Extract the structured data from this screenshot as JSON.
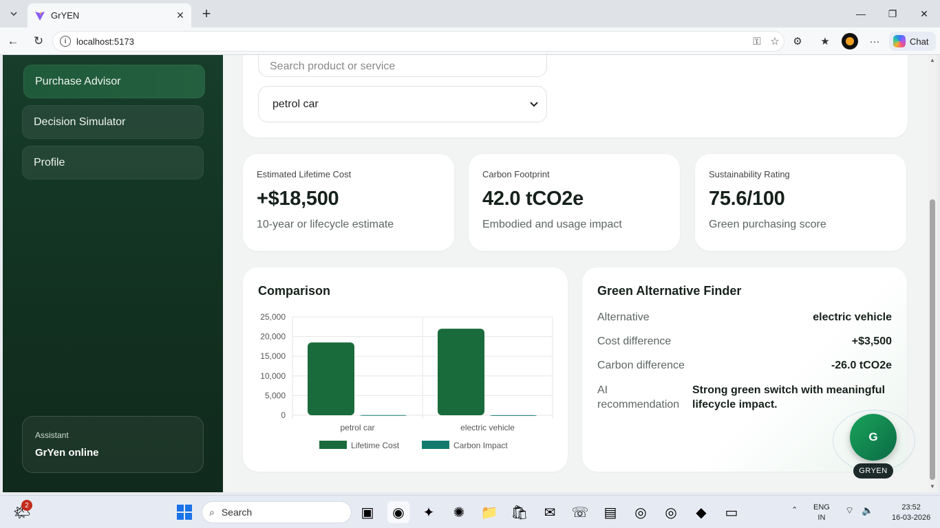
{
  "browser": {
    "tab_title": "GrYEN",
    "url": "localhost:5173",
    "chat_label": "Chat"
  },
  "sidebar": {
    "items": [
      {
        "label": "Purchase Advisor",
        "active": true
      },
      {
        "label": "Decision Simulator",
        "active": false
      },
      {
        "label": "Profile",
        "active": false
      }
    ],
    "assistant_label": "Assistant",
    "assistant_status": "GrYen online"
  },
  "search": {
    "placeholder": "Search product or service",
    "selected_option": "petrol car"
  },
  "stats": [
    {
      "label": "Estimated Lifetime Cost",
      "value": "+$18,500",
      "sub": "10-year or lifecycle estimate"
    },
    {
      "label": "Carbon Footprint",
      "value": "42.0 tCO2e",
      "sub": "Embodied and usage impact"
    },
    {
      "label": "Sustainability Rating",
      "value": "75.6/100",
      "sub": "Green purchasing score"
    }
  ],
  "comparison": {
    "title": "Comparison"
  },
  "chart_data": {
    "type": "bar",
    "title": "Comparison",
    "categories": [
      "petrol car",
      "electric vehicle"
    ],
    "series": [
      {
        "name": "Lifetime Cost",
        "values": [
          18500,
          22000
        ],
        "color": "#1a6b3c"
      },
      {
        "name": "Carbon Impact",
        "values": [
          42,
          16
        ],
        "color": "#137a6e"
      }
    ],
    "ylim": [
      0,
      25000
    ],
    "yticks": [
      "25,000",
      "20,000",
      "15,000",
      "10,000",
      "5,000",
      "0"
    ],
    "ytick_values": [
      25000,
      20000,
      15000,
      10000,
      5000,
      0
    ],
    "legend": "bottom",
    "grid": true
  },
  "finder": {
    "title": "Green Alternative Finder",
    "rows": [
      {
        "label": "Alternative",
        "value": "electric vehicle"
      },
      {
        "label": "Cost difference",
        "value": "+$3,500"
      },
      {
        "label": "Carbon difference",
        "value": "-26.0 tCO2e"
      }
    ],
    "ai_label": "AI recommendation",
    "ai_value": "Strong green switch with meaningful lifecycle impact."
  },
  "assistant_fab": {
    "letter": "G",
    "tag": "GRYEN"
  },
  "taskbar": {
    "search_label": "Search",
    "notification_count": "2",
    "lang_1": "ENG",
    "lang_2": "IN",
    "time": "23:52",
    "date": "16-03-2026"
  }
}
